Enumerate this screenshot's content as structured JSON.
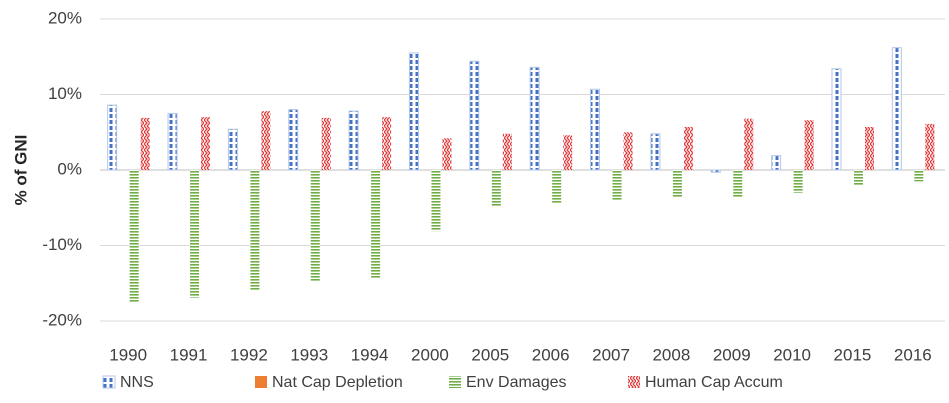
{
  "chart_data": {
    "type": "bar",
    "y_label": "% of GNI",
    "categories": [
      "1990",
      "1991",
      "1992",
      "1993",
      "1994",
      "2000",
      "2005",
      "2006",
      "2007",
      "2008",
      "2009",
      "2010",
      "2015",
      "2016"
    ],
    "series": [
      {
        "name": "NNS",
        "color": "#4472c4",
        "values": [
          8.6,
          7.5,
          5.4,
          8.0,
          7.8,
          15.5,
          14.4,
          13.6,
          10.7,
          4.8,
          -0.3,
          1.9,
          13.4,
          16.2
        ]
      },
      {
        "name": "Nat Cap Depletion",
        "color": "#ed7d31",
        "values": [
          0,
          0,
          0,
          0,
          0,
          0,
          0,
          0,
          0,
          0,
          0,
          0,
          0,
          0
        ]
      },
      {
        "name": "Env Damages",
        "color": "#70ad47",
        "values": [
          -17.5,
          -16.9,
          -15.9,
          -14.8,
          -14.3,
          -8.1,
          -4.8,
          -4.4,
          -4.1,
          -3.7,
          -3.7,
          -3.0,
          -2.1,
          -1.5
        ]
      },
      {
        "name": "Human Cap Accum",
        "color": "#e03c3c",
        "values": [
          6.9,
          7.0,
          7.8,
          6.9,
          7.0,
          4.2,
          4.8,
          4.6,
          5.0,
          5.7,
          6.8,
          6.6,
          5.7,
          6.1
        ]
      }
    ],
    "ylim": [
      -20,
      20
    ],
    "yticks": [
      {
        "value": -20,
        "label": "-20%"
      },
      {
        "value": -10,
        "label": "-10%"
      },
      {
        "value": 0,
        "label": "0%"
      },
      {
        "value": 10,
        "label": "10%"
      },
      {
        "value": 20,
        "label": "20%"
      }
    ],
    "grid": true
  }
}
